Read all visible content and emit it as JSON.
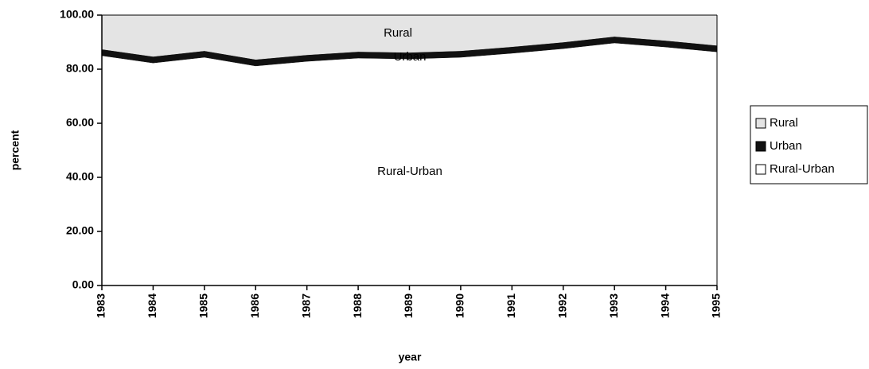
{
  "chart_data": {
    "type": "stacked-area",
    "x_label": "year",
    "y_label": "percent",
    "categories": [
      "1983",
      "1984",
      "1985",
      "1986",
      "1987",
      "1988",
      "1989",
      "1990",
      "1991",
      "1992",
      "1993",
      "1994",
      "1995"
    ],
    "series": [
      {
        "name": "Rural",
        "color": "#e4e4e4",
        "values": [
          12.6,
          15.3,
          13.2,
          16.4,
          14.7,
          13.5,
          13.8,
          13.2,
          11.7,
          10.0,
          7.9,
          9.4,
          11.2
        ]
      },
      {
        "name": "Urban",
        "color": "#111111",
        "values": [
          2.4,
          2.4,
          2.4,
          2.4,
          2.4,
          2.4,
          2.4,
          2.4,
          2.4,
          2.4,
          2.4,
          2.4,
          2.4
        ]
      },
      {
        "name": "Rural-Urban",
        "color": "#ffffff",
        "values": [
          85.0,
          82.3,
          84.4,
          81.2,
          82.9,
          84.1,
          83.8,
          84.4,
          85.9,
          87.6,
          89.7,
          88.2,
          86.4
        ]
      }
    ],
    "ylim": [
      0,
      100
    ],
    "yticks": [
      {
        "value": 0,
        "label": "0.00"
      },
      {
        "value": 20,
        "label": "20.00"
      },
      {
        "value": 40,
        "label": "40.00"
      },
      {
        "value": 60,
        "label": "60.00"
      },
      {
        "value": 80,
        "label": "80.00"
      },
      {
        "value": 100,
        "label": "100.00"
      }
    ],
    "legend": "right"
  }
}
